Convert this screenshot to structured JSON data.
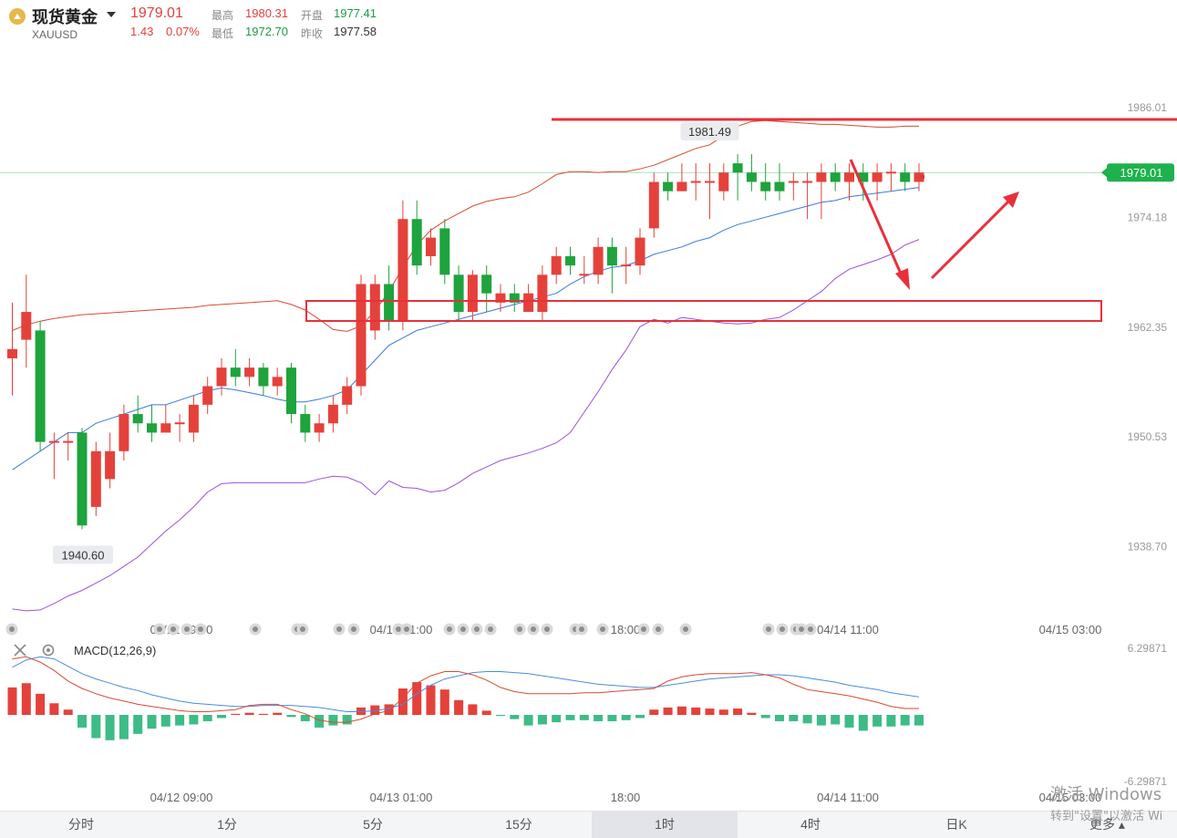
{
  "header": {
    "name": "现货黄金",
    "code": "XAUUSD",
    "price": "1979.01",
    "change": "1.43",
    "change_pct": "0.07%",
    "high_label": "最高",
    "high_value": "1980.31",
    "open_label": "开盘",
    "open_value": "1977.41",
    "low_label": "最低",
    "low_value": "1972.70",
    "prev_label": "昨收",
    "prev_value": "1977.58"
  },
  "tabs": [
    "分时",
    "1分",
    "5分",
    "15分",
    "1时",
    "4时",
    "日K"
  ],
  "active_tab": "1时",
  "more_label": "更多",
  "watermark": {
    "line1": "激活 Windows",
    "line2": "转到\"设置\"以激活 Wi"
  },
  "colors": {
    "up": "#e5413b",
    "down": "#1ea33d",
    "ma": "#3a78e0",
    "upper": "#d94a32",
    "lower": "#9b52e0",
    "accent": "#1db24d"
  },
  "chart_data": [
    {
      "type": "candlestick",
      "title": "",
      "y_ticks": [
        "1986.01",
        "1974.18",
        "1962.35",
        "1950.53",
        "1938.70"
      ],
      "ylim": [
        1931.4,
        1991.7
      ],
      "x_tick_labels": [
        "04/12 09:00",
        "04/13 01:00",
        "18:00",
        "04/14 11:00",
        "04/15 03:00"
      ],
      "last_price": "1979.01",
      "max_label": "1981.49",
      "min_label": "1940.60",
      "candles": [
        [
          1959,
          1960,
          1955,
          1965
        ],
        [
          1961,
          1964,
          1958,
          1968
        ],
        [
          1962,
          1950,
          1949,
          1963
        ],
        [
          1950,
          1950,
          1946,
          1951
        ],
        [
          1950,
          1950,
          1948,
          1951
        ],
        [
          1951,
          1941,
          1940.6,
          1951.5
        ],
        [
          1943,
          1949,
          1942,
          1950
        ],
        [
          1946,
          1949,
          1945,
          1951
        ],
        [
          1949,
          1953,
          1948,
          1954
        ],
        [
          1953,
          1952,
          1951,
          1955
        ],
        [
          1952,
          1951,
          1950,
          1954
        ],
        [
          1951,
          1952,
          1951,
          1954
        ],
        [
          1952,
          1952,
          1950,
          1953
        ],
        [
          1951,
          1954,
          1950,
          1955
        ],
        [
          1954,
          1956,
          1953,
          1957
        ],
        [
          1956,
          1958,
          1955,
          1959
        ],
        [
          1958,
          1957,
          1956,
          1960
        ],
        [
          1957,
          1958,
          1956,
          1959
        ],
        [
          1958,
          1956,
          1955,
          1958.5
        ],
        [
          1956,
          1957,
          1955,
          1958
        ],
        [
          1958,
          1953,
          1952,
          1958.5
        ],
        [
          1953,
          1951,
          1950,
          1954
        ],
        [
          1951,
          1952,
          1950,
          1953
        ],
        [
          1952,
          1954,
          1951,
          1955
        ],
        [
          1954,
          1956,
          1953,
          1957
        ],
        [
          1956,
          1967,
          1955,
          1968
        ],
        [
          1962,
          1967,
          1961,
          1968
        ],
        [
          1967,
          1963,
          1962,
          1969
        ],
        [
          1963,
          1974,
          1962,
          1976
        ],
        [
          1974,
          1969,
          1968,
          1976
        ],
        [
          1970,
          1972,
          1969,
          1973
        ],
        [
          1973,
          1968,
          1967,
          1974
        ],
        [
          1968,
          1964,
          1963,
          1969
        ],
        [
          1964,
          1968,
          1963,
          1968.5
        ],
        [
          1968,
          1966,
          1964,
          1969
        ],
        [
          1965,
          1966,
          1964,
          1967
        ],
        [
          1966,
          1965,
          1964,
          1967
        ],
        [
          1964,
          1966,
          1964,
          1967
        ],
        [
          1964,
          1968,
          1963,
          1969
        ],
        [
          1968,
          1970,
          1967,
          1971
        ],
        [
          1970,
          1969,
          1968,
          1971
        ],
        [
          1968,
          1968,
          1967,
          1970
        ],
        [
          1968,
          1971,
          1967,
          1972
        ],
        [
          1971,
          1969,
          1966,
          1972
        ],
        [
          1969,
          1969,
          1967,
          1971
        ],
        [
          1969,
          1972,
          1968,
          1973
        ],
        [
          1973,
          1978,
          1972,
          1979
        ],
        [
          1978,
          1977,
          1976,
          1979
        ],
        [
          1977,
          1978,
          1977,
          1980
        ],
        [
          1978,
          1978,
          1976,
          1980
        ],
        [
          1978,
          1978,
          1974,
          1980
        ],
        [
          1977,
          1979,
          1976,
          1980
        ],
        [
          1980,
          1979,
          1976,
          1981
        ],
        [
          1979,
          1978,
          1977,
          1981
        ],
        [
          1978,
          1977,
          1976,
          1980
        ],
        [
          1978,
          1977,
          1976,
          1980
        ],
        [
          1978,
          1978,
          1976,
          1979
        ],
        [
          1978,
          1978,
          1974,
          1979
        ],
        [
          1978,
          1979,
          1974,
          1980
        ],
        [
          1979,
          1978,
          1977,
          1980
        ],
        [
          1978,
          1979,
          1976,
          1980
        ],
        [
          1979,
          1978,
          1976,
          1980
        ],
        [
          1978,
          1979,
          1976,
          1980
        ],
        [
          1979,
          1979,
          1977,
          1980
        ],
        [
          1979,
          1978,
          1977,
          1980
        ],
        [
          1978,
          1979,
          1977,
          1980
        ]
      ],
      "middle_band": [
        1947,
        1948,
        1949,
        1950,
        1951,
        1951,
        1952,
        1952.5,
        1953,
        1953.5,
        1954,
        1954,
        1954.5,
        1955,
        1955.5,
        1955.8,
        1955.6,
        1955.3,
        1955,
        1954.6,
        1954.3,
        1954.3,
        1954.6,
        1955,
        1955.6,
        1957.2,
        1958.8,
        1960.4,
        1961.2,
        1962,
        1962.4,
        1962.8,
        1963.2,
        1963.6,
        1964,
        1964.4,
        1964.8,
        1965.2,
        1965.6,
        1966,
        1967,
        1967.8,
        1968.4,
        1968.8,
        1969,
        1969.5,
        1970.2,
        1970.6,
        1971,
        1971.6,
        1972,
        1972.8,
        1973.4,
        1973.8,
        1974.2,
        1974.6,
        1975,
        1975.4,
        1975.8,
        1976,
        1976.4,
        1976.6,
        1976.8,
        1977,
        1977.2,
        1977.4
      ],
      "upper_band": [
        1962,
        1962.6,
        1963,
        1963.3,
        1963.5,
        1963.7,
        1963.8,
        1963.9,
        1964,
        1964.1,
        1964.2,
        1964.3,
        1964.4,
        1964.5,
        1964.7,
        1964.8,
        1964.9,
        1965,
        1965.1,
        1965.2,
        1964.8,
        1964.2,
        1963.2,
        1962.1,
        1961.9,
        1962.5,
        1964.1,
        1966.2,
        1968.8,
        1971.2,
        1972.8,
        1973.8,
        1974.6,
        1975.4,
        1975.9,
        1976.2,
        1976.4,
        1976.9,
        1977.8,
        1978.8,
        1979.1,
        1979.1,
        1979.0,
        1979.1,
        1979.1,
        1979.4,
        1979.8,
        1980.4,
        1981,
        1981.6,
        1982,
        1983,
        1984,
        1984.5,
        1984.6,
        1984.5,
        1984.4,
        1984.3,
        1984.2,
        1984.2,
        1984.1,
        1984,
        1983.9,
        1983.9,
        1984,
        1984
      ],
      "lower_band": [
        1932,
        1931.8,
        1931.9,
        1932.6,
        1933.4,
        1934,
        1934.8,
        1935.6,
        1936.6,
        1937.6,
        1939,
        1940.4,
        1941.6,
        1943,
        1944.6,
        1945.5,
        1945.6,
        1945.6,
        1945.6,
        1945.6,
        1945.6,
        1945.6,
        1946,
        1946.3,
        1946.2,
        1945.6,
        1944.3,
        1945.8,
        1945.1,
        1945,
        1944.6,
        1944.8,
        1945.6,
        1946.6,
        1947.3,
        1948,
        1948.4,
        1948.8,
        1949.3,
        1949.9,
        1951,
        1953.2,
        1955.4,
        1957.8,
        1959.9,
        1962.4,
        1963.2,
        1962.8,
        1963.4,
        1963.2,
        1963,
        1962.8,
        1962.7,
        1962.8,
        1963.2,
        1963.4,
        1964.2,
        1965.2,
        1966.2,
        1967.6,
        1968.6,
        1969.1,
        1969.6,
        1970.2,
        1971.2,
        1971.8
      ]
    },
    {
      "type": "bar",
      "title": "MACD(12,26,9)",
      "y_ticks": [
        "6.29871",
        "-6.29871"
      ],
      "ylim": [
        -6.29871,
        6.29871
      ],
      "x_tick_labels": [
        "04/12 09:00",
        "04/13 01:00",
        "18:00",
        "04/14 11:00",
        "04/15 03:00"
      ],
      "histogram": [
        2.6,
        3.0,
        2.0,
        1.1,
        0.5,
        -1.2,
        -2.2,
        -2.4,
        -2.3,
        -1.8,
        -1.3,
        -1.1,
        -1.0,
        -0.9,
        -0.6,
        -0.3,
        0.1,
        0.2,
        0.1,
        0.2,
        -0.2,
        -0.6,
        -1.2,
        -1.0,
        -0.9,
        0.7,
        0.9,
        1.0,
        2.5,
        3.1,
        2.8,
        2.4,
        1.4,
        1.0,
        0.4,
        -0.1,
        -0.4,
        -1.0,
        -0.9,
        -0.7,
        -0.5,
        -0.5,
        -0.6,
        -0.6,
        -0.5,
        -0.3,
        0.5,
        0.7,
        0.8,
        0.7,
        0.6,
        0.5,
        0.6,
        0.2,
        -0.3,
        -0.6,
        -0.6,
        -0.8,
        -1.0,
        -0.9,
        -1.2,
        -1.5,
        -1.1,
        -1.1,
        -1.0,
        -1.0
      ],
      "dif": [
        5.3,
        5.5,
        5.0,
        4.2,
        3.2,
        2.5,
        2.0,
        1.6,
        1.3,
        1.0,
        0.8,
        0.6,
        0.4,
        0.3,
        0.3,
        0.4,
        0.5,
        0.9,
        1.0,
        1.0,
        0.5,
        0.1,
        -0.5,
        -0.7,
        -0.7,
        -0.4,
        0.1,
        0.4,
        1.6,
        3.0,
        3.7,
        4.1,
        4.1,
        3.8,
        3.3,
        2.6,
        2.2,
        2.0,
        2.0,
        2.0,
        2.0,
        2.1,
        2.1,
        2.2,
        2.3,
        2.4,
        2.5,
        3.2,
        3.6,
        3.8,
        3.9,
        3.9,
        3.9,
        4.0,
        3.8,
        3.5,
        2.9,
        2.4,
        2.2,
        2.0,
        1.8,
        1.5,
        1.2,
        0.8,
        0.6,
        0.6
      ],
      "dea": [
        4.5,
        5.2,
        5.5,
        5.3,
        4.6,
        3.9,
        3.4,
        3.0,
        2.6,
        2.3,
        1.9,
        1.6,
        1.3,
        1.1,
        1.0,
        0.9,
        0.8,
        0.8,
        0.9,
        0.9,
        0.9,
        0.8,
        0.7,
        0.5,
        0.3,
        0.3,
        0.4,
        0.6,
        1.0,
        2.0,
        2.8,
        3.4,
        3.7,
        4.0,
        4.1,
        4.1,
        4.0,
        3.9,
        3.7,
        3.5,
        3.3,
        3.1,
        2.9,
        2.8,
        2.7,
        2.6,
        2.6,
        2.8,
        3.0,
        3.2,
        3.4,
        3.5,
        3.6,
        3.7,
        3.8,
        3.8,
        3.7,
        3.5,
        3.3,
        3.1,
        2.8,
        2.6,
        2.4,
        2.1,
        1.9,
        1.7
      ]
    }
  ]
}
